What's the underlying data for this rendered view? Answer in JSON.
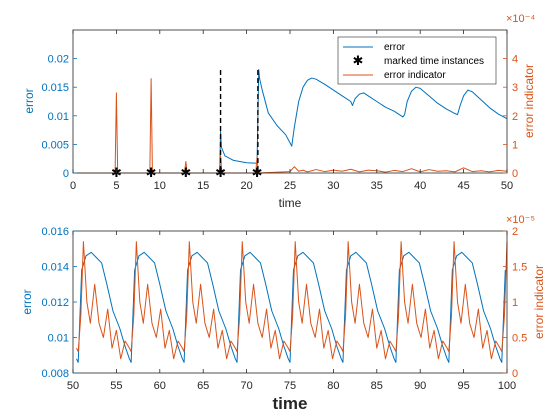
{
  "colors": {
    "error": "#0072BD",
    "indicator": "#D95319",
    "marker": "#000000",
    "axis": "#262626",
    "background": "#ffffff"
  },
  "chart_data": [
    {
      "type": "line",
      "xlabel": "time",
      "ylabel_left": "error",
      "ylabel_right": "error indicator",
      "xlim": [
        0,
        50
      ],
      "ylim_left": [
        0,
        0.025
      ],
      "ylim_right": [
        0,
        0.0005
      ],
      "right_exponent_label": "×10⁻⁴",
      "xticks": [
        0,
        5,
        10,
        15,
        20,
        25,
        30,
        35,
        40,
        45,
        50
      ],
      "xtick_labels": [
        "0",
        "5",
        "10",
        "15",
        "20",
        "25",
        "30",
        "35",
        "40",
        "45",
        "50"
      ],
      "yticks_left": [
        0,
        0.005,
        0.01,
        0.015,
        0.02
      ],
      "ytick_labels_left": [
        "0",
        "0.005",
        "0.01",
        "0.015",
        "0.02"
      ],
      "yticks_right": [
        0,
        0.0001,
        0.0002,
        0.0003,
        0.0004
      ],
      "ytick_labels_right": [
        "0",
        "1",
        "2",
        "3",
        "4"
      ],
      "legend_position": "top-right",
      "legend": [
        "error",
        "marked time instances",
        "error indicator"
      ],
      "series": [
        {
          "name": "error",
          "axis": "left",
          "x": [
            0,
            16.9,
            17.0,
            17.1,
            17.5,
            18.5,
            20,
            21.2,
            21.4,
            21.5,
            21.8,
            22.5,
            23.5,
            24.5,
            25.2,
            25.5,
            26,
            26.5,
            27,
            27.5,
            28,
            29,
            30,
            31,
            32,
            32.2,
            32.5,
            33,
            33.5,
            34,
            35,
            36,
            37,
            38,
            38.2,
            38.5,
            39,
            39.5,
            40,
            41,
            42,
            43,
            44,
            44.3,
            44.6,
            45,
            45.5,
            46,
            47,
            48,
            49,
            50
          ],
          "y": [
            0,
            0,
            0.0073,
            0.0045,
            0.003,
            0.0022,
            0.0018,
            0.0017,
            0.0181,
            0.0165,
            0.0145,
            0.0105,
            0.0083,
            0.0067,
            0.0047,
            0.008,
            0.0125,
            0.015,
            0.0162,
            0.0166,
            0.0164,
            0.0155,
            0.0145,
            0.0135,
            0.0125,
            0.0118,
            0.013,
            0.0138,
            0.014,
            0.0135,
            0.0125,
            0.0115,
            0.0108,
            0.0098,
            0.0102,
            0.0125,
            0.0143,
            0.015,
            0.0148,
            0.0135,
            0.0122,
            0.0112,
            0.0104,
            0.0102,
            0.0118,
            0.0135,
            0.0145,
            0.0142,
            0.0128,
            0.0114,
            0.0103,
            0.0095
          ]
        },
        {
          "name": "error indicator",
          "axis": "right",
          "x": [
            0,
            4.85,
            5.0,
            5.15,
            8.85,
            9.0,
            9.15,
            12.85,
            13.0,
            13.15,
            16.85,
            17.0,
            17.15,
            21.05,
            21.2,
            21.35,
            25.0,
            25.5,
            26.0,
            26.5,
            27.0,
            28.0,
            29.0,
            30.0,
            31.0,
            32.0,
            33.0,
            34.0,
            35.0,
            36.0,
            37.0,
            38.0,
            39.0,
            40.0,
            41.0,
            42.0,
            43.0,
            44.0,
            45.0,
            46.0,
            47.0,
            48.0,
            49.0,
            50.0
          ],
          "y": [
            0,
            0,
            0.00028,
            0,
            0,
            0.00033,
            0,
            0,
            4e-05,
            0,
            0,
            6e-05,
            0,
            0,
            5.5e-05,
            0,
            5e-06,
            2.2e-05,
            6e-06,
            1e-05,
            4e-06,
            1.2e-05,
            5e-06,
            1e-05,
            6e-06,
            1.3e-05,
            4e-06,
            1e-05,
            8e-06,
            3e-06,
            9e-06,
            5e-06,
            1.5e-05,
            4e-06,
            1.2e-05,
            6e-06,
            8e-06,
            4e-06,
            1.8e-05,
            5e-06,
            8e-06,
            4e-06,
            9e-06,
            6e-06
          ]
        },
        {
          "name": "marked time instances",
          "axis": "left",
          "style": "markers",
          "x": [
            5,
            9,
            13,
            17,
            21.2
          ],
          "y": [
            0,
            0,
            0,
            0,
            0
          ]
        }
      ],
      "vertical_lines": [
        17,
        21.3
      ]
    },
    {
      "type": "line",
      "xlabel": "time",
      "ylabel_left": "error",
      "ylabel_right": "error indicator",
      "xlim": [
        50,
        100
      ],
      "ylim_left": [
        0.008,
        0.016
      ],
      "ylim_right": [
        0,
        2e-05
      ],
      "right_exponent_label": "×10⁻⁵",
      "xticks": [
        50,
        55,
        60,
        65,
        70,
        75,
        80,
        85,
        90,
        95,
        100
      ],
      "xtick_labels": [
        "50",
        "55",
        "60",
        "65",
        "70",
        "75",
        "80",
        "85",
        "90",
        "95",
        "100"
      ],
      "yticks_left": [
        0.008,
        0.01,
        0.012,
        0.014,
        0.016
      ],
      "ytick_labels_left": [
        "0.008",
        "0.01",
        "0.012",
        "0.014",
        "0.016"
      ],
      "yticks_right": [
        0,
        5e-06,
        1e-05,
        1.5e-05,
        2e-05
      ],
      "ytick_labels_right": [
        "0",
        "0.5",
        "1",
        "1.5",
        "2"
      ],
      "period": 6.1,
      "phase_start": 50.6,
      "series": [
        {
          "name": "error",
          "axis": "left",
          "cycle_offsets": [
            0,
            0.4,
            0.9,
            1.5,
            2.1,
            2.7,
            3.3,
            4.0,
            4.8,
            5.4,
            5.9
          ],
          "cycle_values": [
            0.0086,
            0.0138,
            0.0146,
            0.0148,
            0.0145,
            0.0142,
            0.013,
            0.0115,
            0.0105,
            0.0095,
            0.0088
          ]
        },
        {
          "name": "error indicator",
          "axis": "right",
          "cycle_offsets": [
            0,
            0.3,
            0.6,
            1.0,
            1.4,
            1.9,
            2.4,
            2.9,
            3.4,
            3.9,
            4.4,
            4.9,
            5.4,
            5.9
          ],
          "cycle_values": [
            3e-06,
            8e-06,
            1.85e-05,
            1e-05,
            7e-06,
            1.25e-05,
            7e-06,
            5e-06,
            9e-06,
            3.5e-06,
            6e-06,
            2e-06,
            4.5e-06,
            3.5e-06
          ]
        }
      ]
    }
  ]
}
